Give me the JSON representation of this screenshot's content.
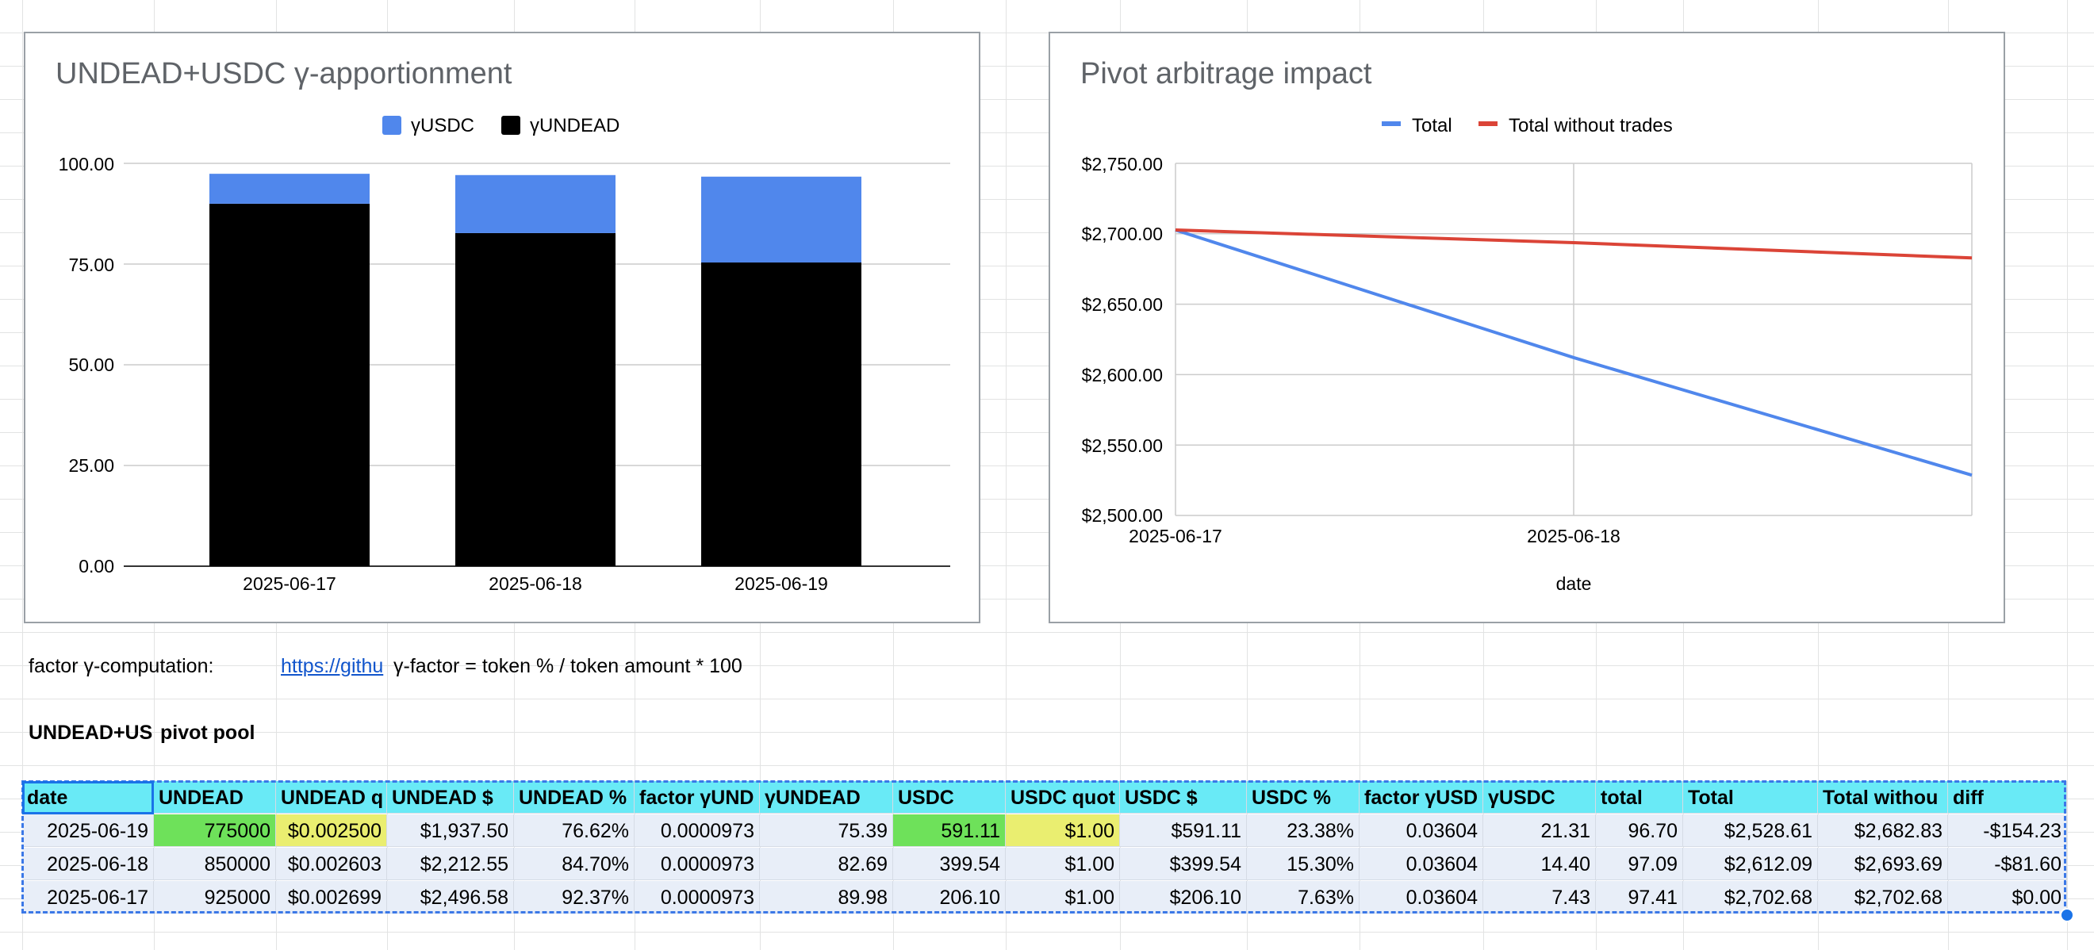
{
  "charts": {
    "apportionment": {
      "title": "UNDEAD+USDC γ-apportionment",
      "legend": [
        "γUSDC",
        "γUNDEAD"
      ],
      "colors": {
        "usdc": "#5087ec",
        "undead": "#000000"
      },
      "y_ticks": [
        "100.00",
        "75.00",
        "50.00",
        "25.00",
        "0.00"
      ],
      "x_ticks": [
        "2025-06-17",
        "2025-06-18",
        "2025-06-19"
      ]
    },
    "arbitrage": {
      "title": "Pivot arbitrage impact",
      "legend": [
        "Total",
        "Total without trades"
      ],
      "colors": {
        "total": "#5087ec",
        "without": "#db4437"
      },
      "y_ticks": [
        "$2,750.00",
        "$2,700.00",
        "$2,650.00",
        "$2,600.00",
        "$2,550.00",
        "$2,500.00"
      ],
      "x_ticks": [
        "2025-06-17",
        "2025-06-18"
      ],
      "xlabel": "date"
    }
  },
  "chart_data": [
    {
      "type": "bar",
      "stacked": true,
      "title": "UNDEAD+USDC γ-apportionment",
      "categories": [
        "2025-06-17",
        "2025-06-18",
        "2025-06-19"
      ],
      "series": [
        {
          "name": "γUNDEAD",
          "values": [
            89.98,
            82.69,
            75.39
          ]
        },
        {
          "name": "γUSDC",
          "values": [
            7.43,
            14.4,
            21.31
          ]
        }
      ],
      "ylim": [
        0,
        100
      ],
      "grid": true,
      "legend": "top"
    },
    {
      "type": "line",
      "title": "Pivot arbitrage impact",
      "x": [
        "2025-06-17",
        "2025-06-18",
        "2025-06-19"
      ],
      "series": [
        {
          "name": "Total",
          "values": [
            2702.68,
            2612.09,
            2528.61
          ]
        },
        {
          "name": "Total without trades",
          "values": [
            2702.68,
            2693.69,
            2682.83
          ]
        }
      ],
      "xlabel": "date",
      "ylabel": "",
      "ylim": [
        2500,
        2750
      ],
      "grid": true,
      "legend": "top"
    }
  ],
  "notes": {
    "label": "factor γ-computation:",
    "link": "https://githu",
    "formula": "γ-factor = token % / token amount * 100",
    "pool_label": "UNDEAD+US",
    "pool_suffix": "pivot pool"
  },
  "table": {
    "headers": [
      "date",
      "UNDEAD",
      "UNDEAD q",
      "UNDEAD $",
      "UNDEAD %",
      "factor γUND",
      "γUNDEAD",
      "USDC",
      "USDC quot",
      "USDC $",
      "USDC %",
      "factor γUSD",
      "γUSDC",
      "total",
      "Total",
      "Total withou",
      "diff"
    ],
    "rows": [
      [
        "2025-06-19",
        "775000",
        "$0.002500",
        "$1,937.50",
        "76.62%",
        "0.0000973",
        "75.39",
        "591.11",
        "$1.00",
        "$591.11",
        "23.38%",
        "0.03604",
        "21.31",
        "96.70",
        "$2,528.61",
        "$2,682.83",
        "-$154.23"
      ],
      [
        "2025-06-18",
        "850000",
        "$0.002603",
        "$2,212.55",
        "84.70%",
        "0.0000973",
        "82.69",
        "399.54",
        "$1.00",
        "$399.54",
        "15.30%",
        "0.03604",
        "14.40",
        "97.09",
        "$2,612.09",
        "$2,693.69",
        "-$81.60"
      ],
      [
        "2025-06-17",
        "925000",
        "$0.002699",
        "$2,496.58",
        "92.37%",
        "0.0000973",
        "89.98",
        "206.10",
        "$1.00",
        "$206.10",
        "7.63%",
        "0.03604",
        "7.43",
        "97.41",
        "$2,702.68",
        "$2,702.68",
        "$0.00"
      ]
    ],
    "highlights": {
      "green": "#6ee15a",
      "yellow": "#eaee70",
      "header": "#69eaf6"
    }
  }
}
